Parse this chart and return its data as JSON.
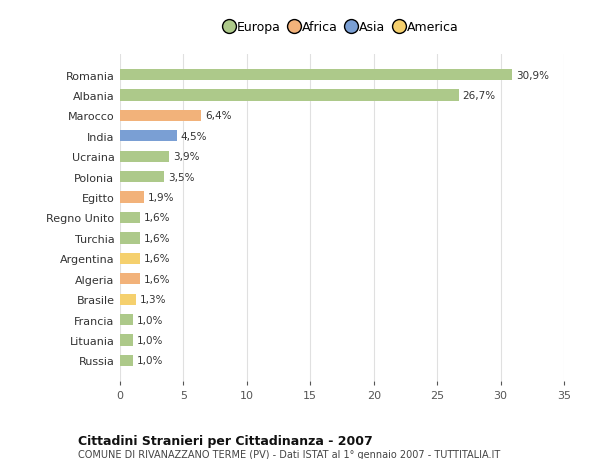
{
  "countries": [
    "Romania",
    "Albania",
    "Marocco",
    "India",
    "Ucraina",
    "Polonia",
    "Egitto",
    "Regno Unito",
    "Turchia",
    "Argentina",
    "Algeria",
    "Brasile",
    "Francia",
    "Lituania",
    "Russia"
  ],
  "values": [
    30.9,
    26.7,
    6.4,
    4.5,
    3.9,
    3.5,
    1.9,
    1.6,
    1.6,
    1.6,
    1.6,
    1.3,
    1.0,
    1.0,
    1.0
  ],
  "labels": [
    "30,9%",
    "26,7%",
    "6,4%",
    "4,5%",
    "3,9%",
    "3,5%",
    "1,9%",
    "1,6%",
    "1,6%",
    "1,6%",
    "1,6%",
    "1,3%",
    "1,0%",
    "1,0%",
    "1,0%"
  ],
  "colors": [
    "#adc98a",
    "#adc98a",
    "#f2b27a",
    "#7a9fd4",
    "#adc98a",
    "#adc98a",
    "#f2b27a",
    "#adc98a",
    "#adc98a",
    "#f5d06e",
    "#f2b27a",
    "#f5d06e",
    "#adc98a",
    "#adc98a",
    "#adc98a"
  ],
  "legend_labels": [
    "Europa",
    "Africa",
    "Asia",
    "America"
  ],
  "legend_colors": [
    "#adc98a",
    "#f2b27a",
    "#7a9fd4",
    "#f5d06e"
  ],
  "title": "Cittadini Stranieri per Cittadinanza - 2007",
  "subtitle": "COMUNE DI RIVANAZZANO TERME (PV) - Dati ISTAT al 1° gennaio 2007 - TUTTITALIA.IT",
  "xlim": [
    0,
    35
  ],
  "xticks": [
    0,
    5,
    10,
    15,
    20,
    25,
    30,
    35
  ],
  "bg_color": "#ffffff",
  "grid_color": "#e0e0e0",
  "bar_height": 0.55
}
